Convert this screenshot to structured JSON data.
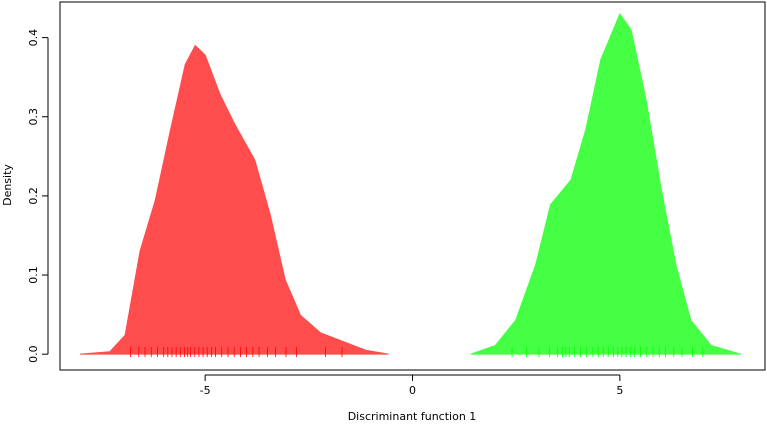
{
  "chart_data": {
    "type": "area",
    "x_label": "Discriminant function 1",
    "y_label": "Density",
    "xlim": [
      -8.5,
      8.5
    ],
    "ylim": [
      -0.02,
      0.445
    ],
    "xticks": [
      -5,
      0,
      5
    ],
    "yticks": [
      {
        "value": 0,
        "label": "0.0"
      },
      0.1,
      0.2,
      0.3,
      0.4
    ],
    "series": [
      {
        "color": "#ff4c4c",
        "x": [
          -8.02,
          -7.3,
          -6.93,
          -6.57,
          -6.2,
          -5.85,
          -5.48,
          -5.24,
          -5.0,
          -4.64,
          -4.28,
          -3.8,
          -3.43,
          -3.07,
          -2.7,
          -2.22,
          -1.62,
          -1.13,
          -0.58
        ],
        "values": [
          0,
          0.003,
          0.024,
          0.13,
          0.195,
          0.28,
          0.366,
          0.39,
          0.378,
          0.328,
          0.29,
          0.245,
          0.176,
          0.094,
          0.049,
          0.027,
          0.015,
          0.005,
          0
        ]
      },
      {
        "color": "#44ff44",
        "x": [
          1.4,
          2.0,
          2.49,
          2.97,
          3.33,
          3.82,
          4.18,
          4.54,
          5.0,
          5.27,
          5.63,
          6.0,
          6.35,
          6.71,
          7.2,
          7.92
        ],
        "values": [
          0,
          0.011,
          0.043,
          0.113,
          0.189,
          0.22,
          0.284,
          0.372,
          0.43,
          0.41,
          0.322,
          0.208,
          0.113,
          0.043,
          0.011,
          0
        ]
      }
    ],
    "rug": [
      {
        "color": "#ff0000",
        "x": [
          -6.8,
          -6.6,
          -6.45,
          -6.3,
          -6.15,
          -6.0,
          -5.9,
          -5.8,
          -5.7,
          -5.6,
          -5.5,
          -5.42,
          -5.35,
          -5.25,
          -5.15,
          -5.05,
          -4.95,
          -4.85,
          -4.75,
          -4.6,
          -4.45,
          -4.3,
          -4.15,
          -4.0,
          -3.85,
          -3.7,
          -3.5,
          -3.3,
          -3.05,
          -2.8,
          -2.1,
          -1.7
        ]
      },
      {
        "color": "#00ff00",
        "x": [
          2.4,
          2.75,
          3.05,
          3.3,
          3.5,
          3.62,
          3.7,
          3.78,
          3.9,
          4.05,
          4.2,
          4.35,
          4.48,
          4.6,
          4.72,
          4.85,
          4.95,
          5.05,
          5.15,
          5.25,
          5.35,
          5.5,
          5.65,
          5.8,
          5.95,
          6.1,
          6.3,
          6.5,
          6.75,
          7.0
        ]
      }
    ]
  }
}
